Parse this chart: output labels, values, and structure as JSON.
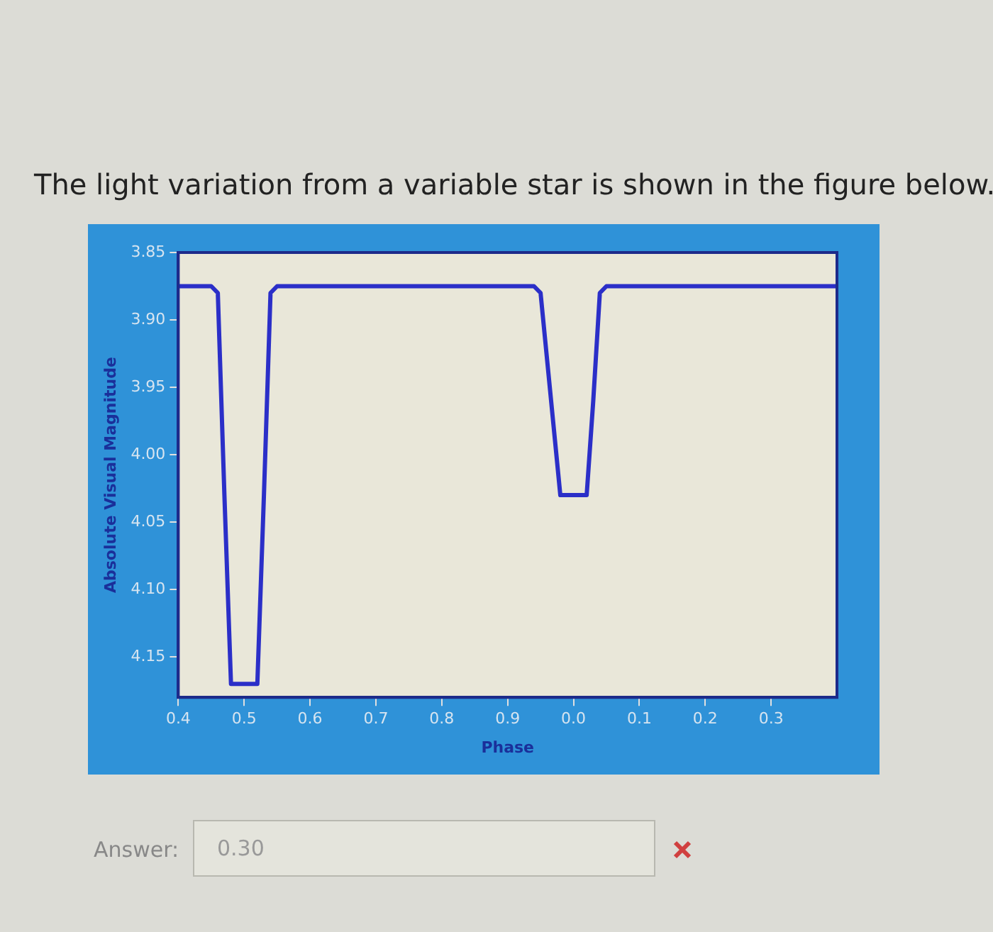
{
  "chart_data": {
    "type": "line",
    "title": "The light variation from a variable star is shown in the figure below.",
    "xlabel": "Phase",
    "ylabel": "Absolute Visual Magnitude",
    "categories": [
      "0.4",
      null,
      null,
      null,
      null,
      null,
      null,
      null,
      null,
      null,
      "0.5",
      null,
      null,
      null,
      null,
      null,
      null,
      null,
      null,
      null,
      "0.6",
      null,
      null,
      null,
      null,
      null,
      null,
      null,
      null,
      null,
      "0.7",
      null,
      null,
      null,
      null,
      null,
      null,
      null,
      null,
      null,
      "0.8",
      null,
      null,
      null,
      null,
      null,
      null,
      null,
      null,
      null,
      "0.9",
      null,
      null,
      null,
      null,
      null,
      null,
      null,
      null,
      null,
      "0.0",
      null,
      null,
      null,
      null,
      null,
      null,
      null,
      null,
      null,
      "0.1",
      null,
      null,
      null,
      null,
      null,
      null,
      null,
      null,
      null,
      "0.2",
      null,
      null,
      null,
      null,
      null,
      null,
      null,
      null,
      null,
      "0.3",
      null,
      null,
      null,
      null,
      null,
      null,
      null,
      null,
      null,
      null
    ],
    "series": [
      {
        "color": "#2b2fc8",
        "values": [
          3.875,
          3.875,
          3.875,
          3.875,
          3.875,
          3.875,
          3.88,
          4.03,
          4.17,
          4.17,
          4.17,
          4.17,
          4.17,
          4.03,
          3.88,
          3.875,
          3.875,
          3.875,
          3.875,
          3.875,
          3.875,
          3.875,
          3.875,
          3.875,
          3.875,
          3.875,
          3.875,
          3.875,
          3.875,
          3.875,
          3.875,
          3.875,
          3.875,
          3.875,
          3.875,
          3.875,
          3.875,
          3.875,
          3.875,
          3.875,
          3.875,
          3.875,
          3.875,
          3.875,
          3.875,
          3.875,
          3.875,
          3.875,
          3.875,
          3.875,
          3.875,
          3.875,
          3.875,
          3.875,
          3.875,
          3.88,
          3.93,
          3.98,
          4.03,
          4.03,
          4.03,
          4.03,
          4.03,
          3.96,
          3.88,
          3.875,
          3.875,
          3.875,
          3.875,
          3.875,
          3.875,
          3.875,
          3.875,
          3.875,
          3.875,
          3.875,
          3.875,
          3.875,
          3.875,
          3.875,
          3.875,
          3.875,
          3.875,
          3.875,
          3.875,
          3.875,
          3.875,
          3.875,
          3.875,
          3.875,
          3.875,
          3.875,
          3.875,
          3.875,
          3.875,
          3.875,
          3.875,
          3.875,
          3.875,
          3.875,
          3.875
        ]
      }
    ],
    "ylim": [
      4.18,
      3.85
    ],
    "yticks": [
      3.85,
      {
        "value": 3.9,
        "label": "3.90"
      },
      3.95,
      {
        "value": 4.0,
        "label": "4.00"
      },
      4.05,
      {
        "value": 4.1,
        "label": "4.10"
      },
      4.15
    ],
    "grid": false,
    "legend": false,
    "marker": "none",
    "line_style": "solid",
    "annotations": [
      "Answer:",
      "0.30"
    ]
  }
}
